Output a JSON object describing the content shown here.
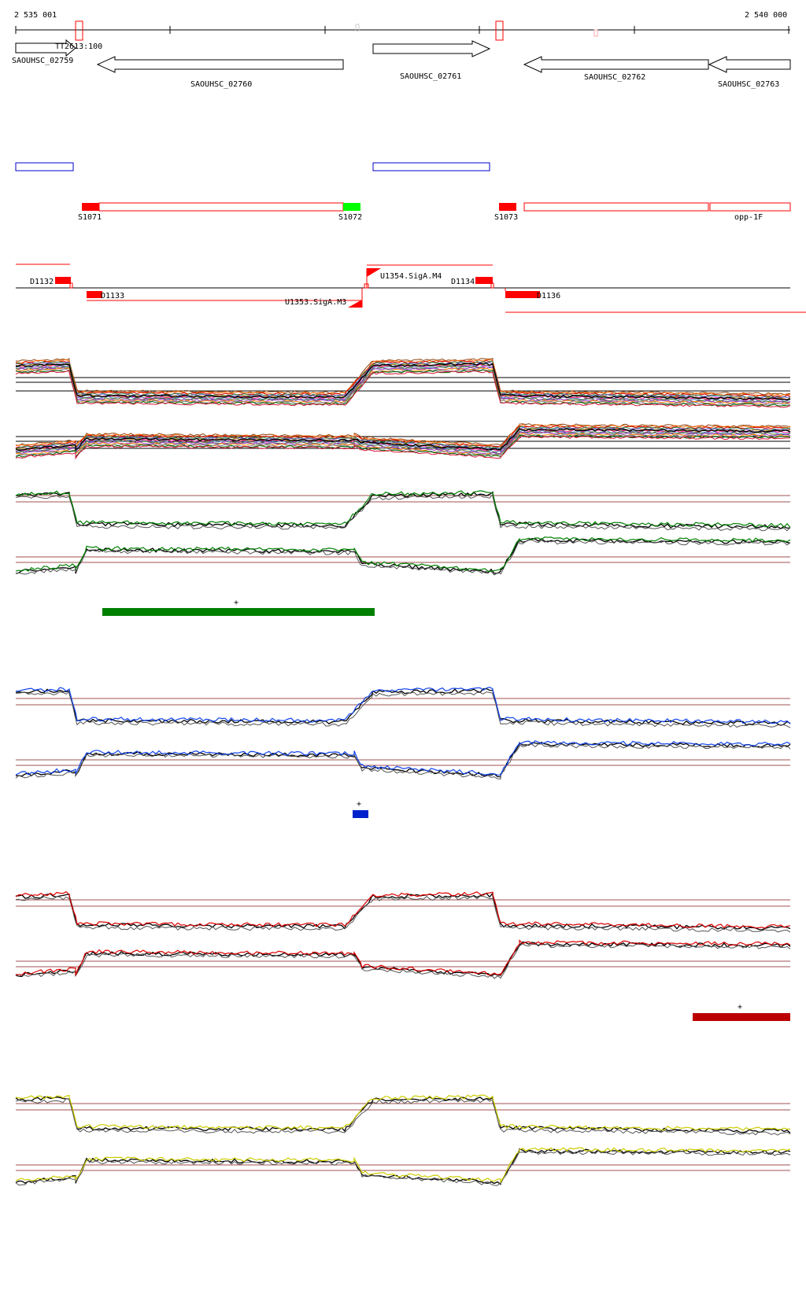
{
  "coordinates": {
    "start": "2 535 001",
    "end": "2 540 000"
  },
  "terminator_label": "TT2613:100",
  "genes": [
    {
      "name": "SAOUHSC_02759",
      "strand": "+"
    },
    {
      "name": "SAOUHSC_02760",
      "strand": "-"
    },
    {
      "name": "SAOUHSC_02761",
      "strand": "+"
    },
    {
      "name": "SAOUHSC_02762",
      "strand": "-"
    },
    {
      "name": "SAOUHSC_02763",
      "strand": "-"
    }
  ],
  "segments": [
    {
      "name": "S1071",
      "color": "#ff0000"
    },
    {
      "name": "S1072",
      "color": "#00ff00"
    },
    {
      "name": "S1073",
      "color": "#ff0000"
    },
    {
      "name": "opp-1F",
      "color": "#ff0000"
    }
  ],
  "features": [
    {
      "name": "D1132"
    },
    {
      "name": "D1133"
    },
    {
      "name": "U1354.SigA.M4"
    },
    {
      "name": "U1353.SigA.M3"
    },
    {
      "name": "D1134"
    },
    {
      "name": "D1136"
    }
  ],
  "panels": [
    {
      "id": "all-conditions",
      "color": "multicolor"
    },
    {
      "id": "condition-green",
      "color": "#008000",
      "marker": "+"
    },
    {
      "id": "condition-blue",
      "color": "#0000cc",
      "marker": "+"
    },
    {
      "id": "condition-red",
      "color": "#bb0000",
      "marker": "+"
    },
    {
      "id": "condition-yellow",
      "color": "#d4d400"
    }
  ]
}
